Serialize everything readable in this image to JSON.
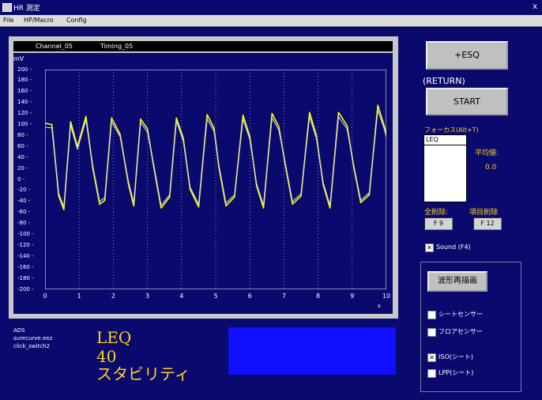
{
  "window": {
    "title": "HR 測定",
    "close": "x"
  },
  "menu": [
    "File",
    "HP/Macro",
    "Config"
  ],
  "plot_header": {
    "channel": "Channel_05",
    "timing": "Timing_05"
  },
  "chart_data": {
    "type": "line",
    "ylabel": "mV",
    "xlabel": "s",
    "ylim": [
      -200,
      200
    ],
    "xlim": [
      0,
      10
    ],
    "y_ticks": [
      "200",
      "180",
      "160",
      "140",
      "120",
      "100",
      "80",
      "60",
      "40",
      "20",
      "0",
      "-20",
      "-40",
      "-60",
      "-80",
      "-100",
      "-120",
      "-140",
      "-160",
      "-180",
      "-200"
    ],
    "x_ticks": [
      "0",
      "1",
      "2",
      "3",
      "4",
      "5",
      "6",
      "7",
      "8",
      "9",
      "10"
    ],
    "grid": true,
    "series": [
      {
        "color": "#ffff00",
        "x": [
          0,
          0.2,
          0.4,
          0.55,
          0.75,
          0.95,
          1.2,
          1.4,
          1.6,
          1.75,
          1.95,
          2.2,
          2.45,
          2.6,
          2.8,
          3.0,
          3.2,
          3.4,
          3.65,
          3.85,
          4.05,
          4.25,
          4.5,
          4.75,
          4.95,
          5.1,
          5.3,
          5.55,
          5.8,
          6.0,
          6.2,
          6.4,
          6.65,
          6.85,
          7.05,
          7.25,
          7.5,
          7.75,
          7.95,
          8.15,
          8.35,
          8.6,
          8.85,
          9.05,
          9.25,
          9.5,
          9.75,
          9.95,
          10
        ],
        "y": [
          102,
          100,
          -30,
          -55,
          105,
          60,
          115,
          20,
          -45,
          -38,
          112,
          82,
          -10,
          -48,
          110,
          92,
          18,
          -52,
          -32,
          112,
          75,
          -18,
          -50,
          118,
          94,
          20,
          -48,
          -32,
          117,
          78,
          -12,
          -52,
          120,
          96,
          22,
          -45,
          -30,
          122,
          80,
          -10,
          -52,
          122,
          98,
          20,
          -42,
          -28,
          135,
          95,
          80
        ]
      },
      {
        "color": "#d8d8e0",
        "x": [
          0,
          0.2,
          0.4,
          0.55,
          0.75,
          0.95,
          1.2,
          1.4,
          1.6,
          1.75,
          1.95,
          2.2,
          2.45,
          2.6,
          2.8,
          3.0,
          3.2,
          3.4,
          3.65,
          3.85,
          4.05,
          4.25,
          4.5,
          4.75,
          4.95,
          5.1,
          5.3,
          5.55,
          5.8,
          6.0,
          6.2,
          6.4,
          6.65,
          6.85,
          7.05,
          7.25,
          7.5,
          7.75,
          7.95,
          8.15,
          8.35,
          8.6,
          8.85,
          9.05,
          9.25,
          9.5,
          9.75,
          9.95,
          10
        ],
        "y": [
          95,
          94,
          -25,
          -50,
          98,
          55,
          108,
          25,
          -40,
          -33,
          105,
          78,
          -5,
          -43,
          104,
          86,
          22,
          -47,
          -28,
          106,
          70,
          -14,
          -45,
          110,
          88,
          24,
          -43,
          -28,
          110,
          73,
          -8,
          -47,
          112,
          90,
          26,
          -40,
          -26,
          114,
          75,
          -6,
          -47,
          114,
          92,
          24,
          -38,
          -24,
          126,
          90,
          76
        ]
      }
    ]
  },
  "buttons": {
    "esq": "+ESQ",
    "return_label": "(RETURN)",
    "start": "START",
    "redraw": "波形再描画"
  },
  "focus_label": "フォーカス(Alt+T)",
  "list": {
    "items": [
      "LEQ"
    ]
  },
  "average": {
    "label": "平均値:",
    "value": "0.0"
  },
  "delete_all": {
    "label": "全削除:",
    "key": "F 9"
  },
  "delete_item": {
    "label": "項目削除",
    "key": "F 12"
  },
  "sound": {
    "label": "Sound (F4)",
    "checked": true
  },
  "options": [
    {
      "label": "シートセンサー",
      "checked": false
    },
    {
      "label": "フロアセンサー",
      "checked": false
    },
    {
      "label": "ISO(シート)",
      "checked": true
    },
    {
      "label": "LPP(シート)",
      "checked": false
    }
  ],
  "info": {
    "line1": "ADS",
    "line2": "surecurve.eez",
    "line3": "click_switch2"
  },
  "measurement": {
    "code": "LEQ",
    "number": "40",
    "name": "スタビリティ"
  }
}
